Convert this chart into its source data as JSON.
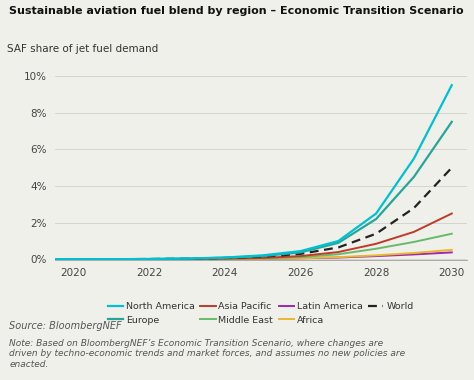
{
  "title": "Sustainable aviation fuel blend by region – Economic Transition Scenario",
  "ylabel": "SAF share of jet fuel demand",
  "source": "Source: BloombergNEF",
  "note": "Note: Based on BloombergNEF’s Economic Transition Scenario, where changes are\ndriven by techno-economic trends and market forces, and assumes no new policies are\nenacted.",
  "years": [
    2019,
    2020,
    2021,
    2022,
    2023,
    2024,
    2025,
    2026,
    2027,
    2028,
    2029,
    2030
  ],
  "north_america": [
    0.01,
    0.01,
    0.01,
    0.02,
    0.05,
    0.1,
    0.22,
    0.45,
    1.0,
    2.5,
    5.5,
    9.5
  ],
  "europe": [
    0.01,
    0.01,
    0.01,
    0.02,
    0.04,
    0.09,
    0.18,
    0.38,
    0.9,
    2.2,
    4.5,
    7.5
  ],
  "asia_pacific": [
    0.01,
    0.01,
    0.01,
    0.01,
    0.02,
    0.04,
    0.08,
    0.18,
    0.4,
    0.85,
    1.5,
    2.5
  ],
  "middle_east": [
    0.01,
    0.01,
    0.01,
    0.01,
    0.02,
    0.03,
    0.06,
    0.12,
    0.28,
    0.58,
    0.95,
    1.4
  ],
  "latin_america": [
    0.01,
    0.01,
    0.01,
    0.01,
    0.01,
    0.02,
    0.03,
    0.06,
    0.1,
    0.18,
    0.27,
    0.38
  ],
  "africa": [
    0.01,
    0.01,
    0.01,
    0.01,
    0.01,
    0.02,
    0.03,
    0.06,
    0.12,
    0.22,
    0.35,
    0.52
  ],
  "world": [
    0.01,
    0.01,
    0.01,
    0.02,
    0.04,
    0.08,
    0.15,
    0.3,
    0.65,
    1.4,
    2.8,
    5.0
  ],
  "colors": {
    "north_america": "#00c0d4",
    "europe": "#26a69a",
    "asia_pacific": "#c0392b",
    "middle_east": "#66bb6a",
    "latin_america": "#9c27b0",
    "africa": "#e8b830",
    "world": "#222222"
  },
  "xlim": [
    2019.5,
    2030.4
  ],
  "ylim": [
    -0.05,
    10
  ],
  "yticks": [
    0,
    2,
    4,
    6,
    8,
    10
  ],
  "xticks": [
    2020,
    2022,
    2024,
    2026,
    2028,
    2030
  ],
  "background_color": "#f0f0ea"
}
